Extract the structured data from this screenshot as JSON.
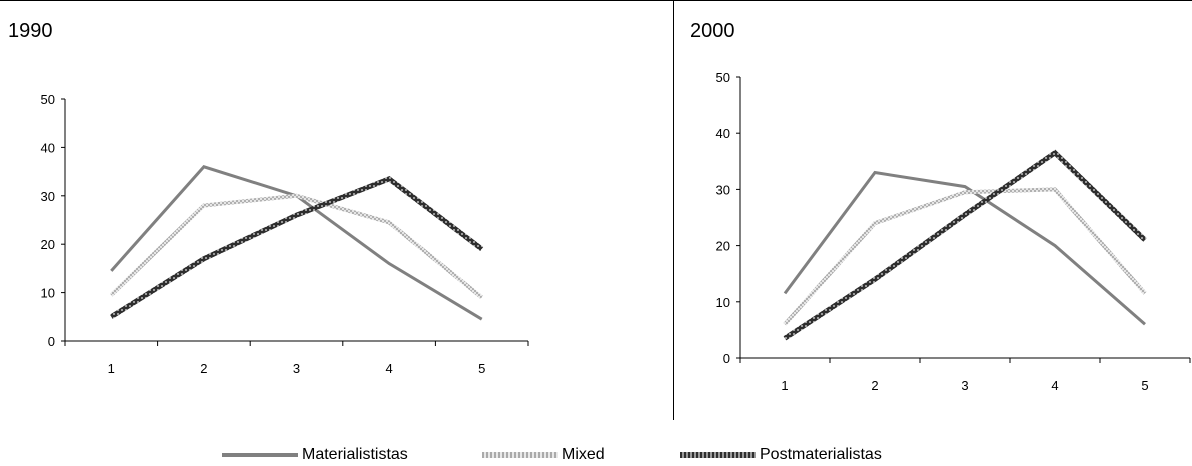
{
  "chart_data": [
    {
      "type": "line",
      "title": "1990",
      "categories": [
        "1",
        "2",
        "3",
        "4",
        "5"
      ],
      "yticks": [
        "0",
        "10",
        "20",
        "30",
        "40",
        "50"
      ],
      "ylim": [
        0,
        50
      ],
      "legend_placement": "bottom",
      "series": [
        {
          "name": "Materialististas",
          "values": [
            14.5,
            36,
            30,
            16,
            4.5
          ]
        },
        {
          "name": "Mixed",
          "values": [
            9.5,
            28,
            30,
            24.5,
            9
          ]
        },
        {
          "name": "Postmaterialistas",
          "values": [
            5,
            17,
            26,
            33.5,
            19
          ]
        }
      ]
    },
    {
      "type": "line",
      "title": "2000",
      "categories": [
        "1",
        "2",
        "3",
        "4",
        "5"
      ],
      "yticks": [
        "0",
        "10",
        "20",
        "30",
        "40",
        "50"
      ],
      "ylim": [
        0,
        50
      ],
      "legend_placement": "bottom",
      "series": [
        {
          "name": "Materialististas",
          "values": [
            11.5,
            33,
            30.5,
            20,
            6
          ]
        },
        {
          "name": "Mixed",
          "values": [
            6,
            24,
            29.5,
            30,
            11.5
          ]
        },
        {
          "name": "Postmaterialistas",
          "values": [
            3.5,
            14,
            25.5,
            36.5,
            21
          ]
        }
      ]
    }
  ],
  "legend": [
    {
      "label": "Materialististas",
      "color": "#808080"
    },
    {
      "label": "Mixed",
      "color": "#c8c8c8"
    },
    {
      "label": "Postmaterialistas",
      "color": "#555555"
    }
  ]
}
